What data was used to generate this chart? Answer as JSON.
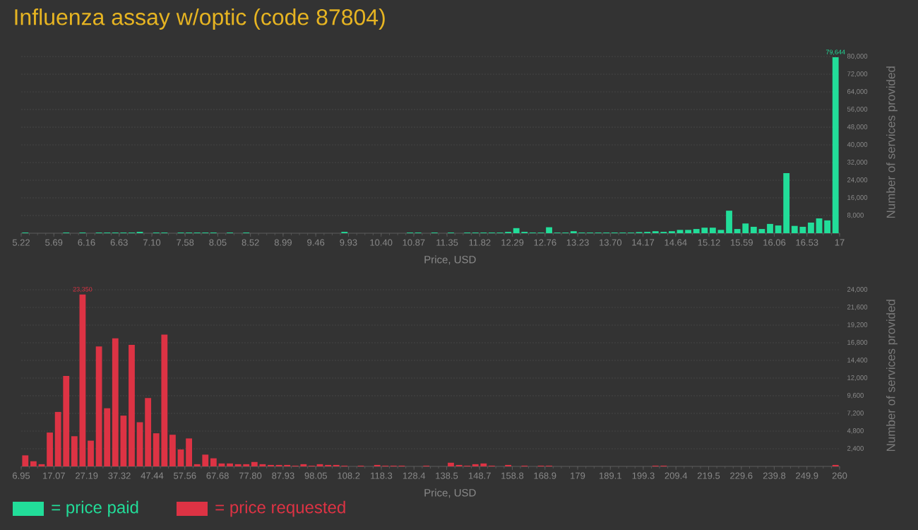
{
  "chart_data": [
    {
      "type": "histogram",
      "title": "Influenza assay w/optic (code 87804)",
      "xlabel": "Price, USD",
      "ylabel": "Number of services provided",
      "bins": [
        5.22,
        5.3378,
        5.4556,
        5.5734,
        5.6912,
        5.809,
        5.9268,
        6.0446,
        6.1624,
        6.2802,
        6.398,
        6.5158,
        6.6336,
        6.7514,
        6.8692,
        6.987,
        7.1048,
        7.2226,
        7.3404,
        7.4582,
        7.576,
        7.6938,
        7.8116,
        7.9294,
        8.0472,
        8.165,
        8.2828,
        8.4006,
        8.5184,
        8.6362,
        8.754,
        8.8718,
        8.9896,
        9.1074,
        9.2252,
        9.343,
        9.4608,
        9.5786,
        9.6964,
        9.8142,
        9.932,
        10.0498,
        10.1676,
        10.2854,
        10.4032,
        10.521,
        10.6388,
        10.7566,
        10.8744,
        10.9922,
        11.11,
        11.2278,
        11.3456,
        11.4634,
        11.5812,
        11.699,
        11.8168,
        11.9346,
        12.0524,
        12.1702,
        12.288,
        12.4058,
        12.5236,
        12.6414,
        12.7592,
        12.877,
        12.9948,
        13.1126,
        13.2304,
        13.3482,
        13.466,
        13.5838,
        13.7016,
        13.8194,
        13.9372,
        14.055,
        14.1728,
        14.2906,
        14.4084,
        14.5262,
        14.644,
        14.7618,
        14.8796,
        14.9974,
        15.1152,
        15.233,
        15.3508,
        15.4686,
        15.5864,
        15.7042,
        15.822,
        15.9398,
        16.0576,
        16.1754,
        16.2932,
        16.411,
        16.5288,
        16.6466,
        16.7644,
        16.8822,
        17
      ],
      "series": [
        {
          "name": "= price paid",
          "color": "#22dd99",
          "values": [
            300,
            0,
            0,
            0,
            0,
            300,
            0,
            300,
            0,
            300,
            300,
            300,
            300,
            300,
            600,
            0,
            300,
            300,
            0,
            300,
            300,
            300,
            300,
            300,
            0,
            300,
            0,
            300,
            0,
            0,
            0,
            0,
            0,
            0,
            0,
            0,
            0,
            0,
            0,
            600,
            0,
            0,
            0,
            0,
            0,
            0,
            0,
            300,
            300,
            0,
            300,
            0,
            300,
            0,
            300,
            300,
            300,
            300,
            300,
            600,
            2300,
            600,
            300,
            300,
            2700,
            300,
            300,
            900,
            300,
            300,
            300,
            300,
            300,
            300,
            300,
            500,
            600,
            900,
            600,
            900,
            1500,
            1500,
            1900,
            2500,
            2500,
            1500,
            10200,
            1900,
            4400,
            2900,
            1900,
            4200,
            3500,
            27200,
            3300,
            2900,
            4800,
            6700,
            5800,
            79644
          ],
          "value_labels": [
            null,
            null,
            null,
            null,
            null,
            null,
            null,
            null,
            null,
            null,
            null,
            null,
            null,
            null,
            null,
            null,
            null,
            null,
            null,
            null,
            null,
            null,
            null,
            null,
            null,
            null,
            null,
            null,
            null,
            null,
            null,
            null,
            null,
            null,
            null,
            null,
            null,
            null,
            null,
            null,
            null,
            null,
            null,
            null,
            null,
            null,
            null,
            null,
            null,
            null,
            null,
            null,
            null,
            null,
            null,
            null,
            null,
            null,
            null,
            null,
            null,
            null,
            null,
            null,
            null,
            null,
            null,
            null,
            null,
            null,
            null,
            null,
            null,
            null,
            null,
            null,
            null,
            null,
            null,
            null,
            null,
            null,
            null,
            null,
            null,
            null,
            null,
            null,
            null,
            null,
            null,
            null,
            null,
            null,
            null,
            null,
            null,
            null,
            null,
            "79,644"
          ]
        }
      ],
      "xlim": [
        5.22,
        17
      ],
      "ylim": [
        0,
        80000
      ],
      "xticks": [
        5.22,
        5.69,
        6.16,
        6.63,
        {
          "value": 7.1,
          "label": "7.10"
        },
        7.58,
        8.05,
        8.52,
        8.99,
        9.46,
        9.93,
        {
          "value": 10.4,
          "label": "10.40"
        },
        10.87,
        11.35,
        11.82,
        12.29,
        12.76,
        13.23,
        {
          "value": 13.7,
          "label": "13.70"
        },
        14.17,
        14.64,
        15.12,
        15.59,
        16.06,
        16.53,
        17
      ],
      "yticks": [
        {
          "value": 8000,
          "label": "8,000"
        },
        {
          "value": 16000,
          "label": "16,000"
        },
        {
          "value": 24000,
          "label": "24,000"
        },
        {
          "value": 32000,
          "label": "32,000"
        },
        {
          "value": 40000,
          "label": "40,000"
        },
        {
          "value": 48000,
          "label": "48,000"
        },
        {
          "value": 56000,
          "label": "56,000"
        },
        {
          "value": 64000,
          "label": "64,000"
        },
        {
          "value": 72000,
          "label": "72,000"
        },
        {
          "value": 80000,
          "label": "80,000"
        }
      ],
      "grid": "y",
      "legend": "bottom"
    },
    {
      "type": "histogram",
      "xlabel": "Price, USD",
      "ylabel": "Number of services provided",
      "bins": [
        6.95,
        9.4805,
        12.011,
        14.5415,
        17.072,
        19.6025,
        22.133,
        24.6635,
        27.194,
        29.7245,
        32.255,
        34.7855,
        37.316,
        39.8465,
        42.377,
        44.9075,
        47.438,
        49.9685,
        52.499,
        55.0295,
        57.56,
        60.0905,
        62.621,
        65.1515,
        67.682,
        70.2125,
        72.743,
        75.2735,
        77.804,
        80.3345,
        82.865,
        85.3955,
        87.926,
        90.4565,
        92.987,
        95.5175,
        98.048,
        100.5785,
        103.109,
        105.6395,
        108.17,
        110.7005,
        113.231,
        115.7615,
        118.292,
        120.8225,
        123.353,
        125.8835,
        128.414,
        130.9445,
        133.475,
        136.0055,
        138.536,
        141.0665,
        143.597,
        146.1275,
        148.658,
        151.1885,
        153.719,
        156.2495,
        158.78,
        161.3105,
        163.841,
        166.3715,
        168.902,
        171.4325,
        173.963,
        176.4935,
        179.024,
        181.5545,
        184.085,
        186.6155,
        189.146,
        191.6765,
        194.207,
        196.7375,
        199.268,
        201.7985,
        204.329,
        206.8595,
        209.39,
        211.9205,
        214.451,
        216.9815,
        219.512,
        222.0425,
        224.573,
        227.1035,
        229.634,
        232.1645,
        234.695,
        237.2255,
        239.756,
        242.2865,
        244.817,
        247.3475,
        249.878,
        252.4085,
        254.939,
        257.4695,
        260
      ],
      "series": [
        {
          "name": "= price requested",
          "color": "#dd3344",
          "values": [
            1500,
            700,
            300,
            4600,
            7400,
            12300,
            4100,
            23350,
            3500,
            16300,
            7900,
            17400,
            6900,
            16500,
            6000,
            9300,
            4500,
            17900,
            4300,
            2300,
            3800,
            300,
            1600,
            1100,
            400,
            400,
            300,
            300,
            600,
            300,
            200,
            200,
            200,
            100,
            300,
            100,
            300,
            200,
            200,
            100,
            0,
            100,
            0,
            200,
            100,
            100,
            100,
            0,
            0,
            100,
            0,
            0,
            500,
            200,
            100,
            300,
            400,
            100,
            0,
            200,
            0,
            100,
            0,
            100,
            100,
            0,
            0,
            0,
            0,
            0,
            0,
            0,
            0,
            0,
            0,
            0,
            0,
            100,
            100,
            0,
            0,
            0,
            0,
            0,
            0,
            0,
            0,
            0,
            0,
            0,
            0,
            0,
            0,
            0,
            0,
            0,
            0,
            0,
            0,
            200
          ],
          "value_labels": [
            null,
            null,
            null,
            null,
            null,
            null,
            null,
            "23,350",
            null,
            null,
            null,
            null,
            null,
            null,
            null,
            null,
            null,
            null,
            null,
            null,
            null,
            null,
            null,
            null,
            null,
            null,
            null,
            null,
            null,
            null,
            null,
            null,
            null,
            null,
            null,
            null,
            null,
            null,
            null,
            null,
            null,
            null,
            null,
            null,
            null,
            null,
            null,
            null,
            null,
            null,
            null,
            null,
            null,
            null,
            null,
            null,
            null,
            null,
            null,
            null,
            null,
            null,
            null,
            null,
            null,
            null,
            null,
            null,
            null,
            null,
            null,
            null,
            null,
            null,
            null,
            null,
            null,
            null,
            null,
            null,
            null,
            null,
            null,
            null,
            null,
            null,
            null,
            null,
            null,
            null,
            null,
            null,
            null,
            null,
            null,
            null,
            null,
            null,
            null,
            null
          ]
        }
      ],
      "xlim": [
        6.95,
        260
      ],
      "ylim": [
        0,
        24000
      ],
      "xticks": [
        6.95,
        17.07,
        27.19,
        37.32,
        47.44,
        57.56,
        67.68,
        {
          "value": 77.8,
          "label": "77.80"
        },
        87.93,
        98.05,
        108.2,
        118.3,
        128.4,
        138.5,
        148.7,
        158.8,
        168.9,
        179,
        189.1,
        199.3,
        209.4,
        219.5,
        229.6,
        239.8,
        249.9,
        260
      ],
      "yticks": [
        {
          "value": 2400,
          "label": "2,400"
        },
        {
          "value": 4800,
          "label": "4,800"
        },
        {
          "value": 7200,
          "label": "7,200"
        },
        {
          "value": 9600,
          "label": "9,600"
        },
        {
          "value": 12000,
          "label": "12,000"
        },
        {
          "value": 14400,
          "label": "14,400"
        },
        {
          "value": 16800,
          "label": "16,800"
        },
        {
          "value": 19200,
          "label": "19,200"
        },
        {
          "value": 21600,
          "label": "21,600"
        },
        {
          "value": 24000,
          "label": "24,000"
        }
      ],
      "grid": "y",
      "legend": "bottom"
    }
  ]
}
